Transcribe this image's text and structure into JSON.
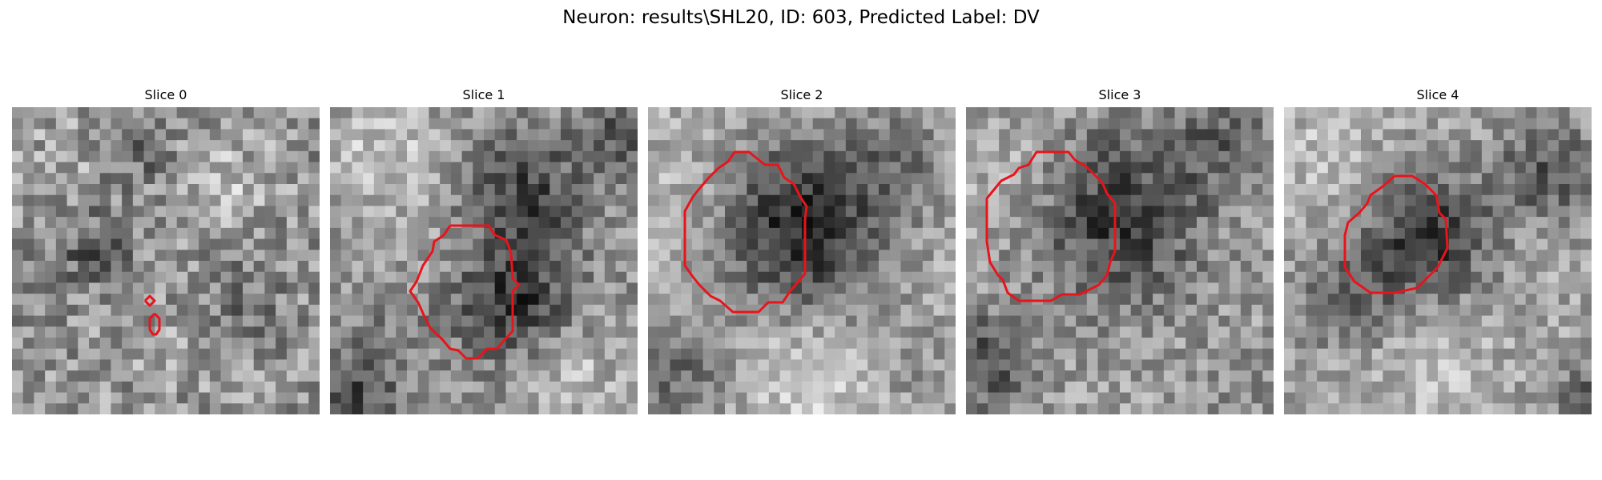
{
  "figure": {
    "title": "Neuron: results\\SHL20, ID: 603, Predicted Label: DV"
  },
  "colors": {
    "background": "#ffffff",
    "contour": "#e8141c"
  },
  "panels": [
    {
      "title": "Slice 0"
    },
    {
      "title": "Slice 1"
    },
    {
      "title": "Slice 2"
    },
    {
      "title": "Slice 3"
    },
    {
      "title": "Slice 4"
    }
  ]
}
